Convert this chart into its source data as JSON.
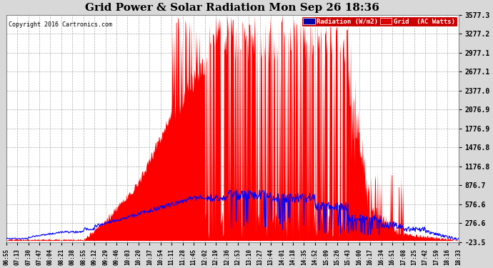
{
  "title": "Grid Power & Solar Radiation Mon Sep 26 18:36",
  "copyright": "Copyright 2016 Cartronics.com",
  "legend_radiation": "Radiation (W/m2)",
  "legend_grid": "Grid  (AC Watts)",
  "yticks": [
    3577.3,
    3277.2,
    2977.1,
    2677.1,
    2377.0,
    2076.9,
    1776.9,
    1476.8,
    1176.8,
    876.7,
    576.6,
    276.6,
    -23.5
  ],
  "ymin": -23.5,
  "ymax": 3577.3,
  "xtick_labels": [
    "06:55",
    "07:13",
    "07:30",
    "07:47",
    "08:04",
    "08:21",
    "08:38",
    "08:55",
    "09:12",
    "09:29",
    "09:46",
    "10:03",
    "10:20",
    "10:37",
    "10:54",
    "11:11",
    "11:28",
    "11:45",
    "12:02",
    "12:19",
    "12:36",
    "12:53",
    "13:10",
    "13:27",
    "13:44",
    "14:01",
    "14:18",
    "14:35",
    "14:52",
    "15:09",
    "15:26",
    "15:43",
    "16:00",
    "16:17",
    "16:34",
    "16:51",
    "17:08",
    "17:25",
    "17:42",
    "17:59",
    "18:16",
    "18:33"
  ],
  "background_color": "#d8d8d8",
  "plot_bg_color": "#ffffff",
  "grid_color": "#999999",
  "radiation_color": "#ff0000",
  "grid_line_color": "#0000ff",
  "title_color": "#000000",
  "copyright_color": "#000000"
}
